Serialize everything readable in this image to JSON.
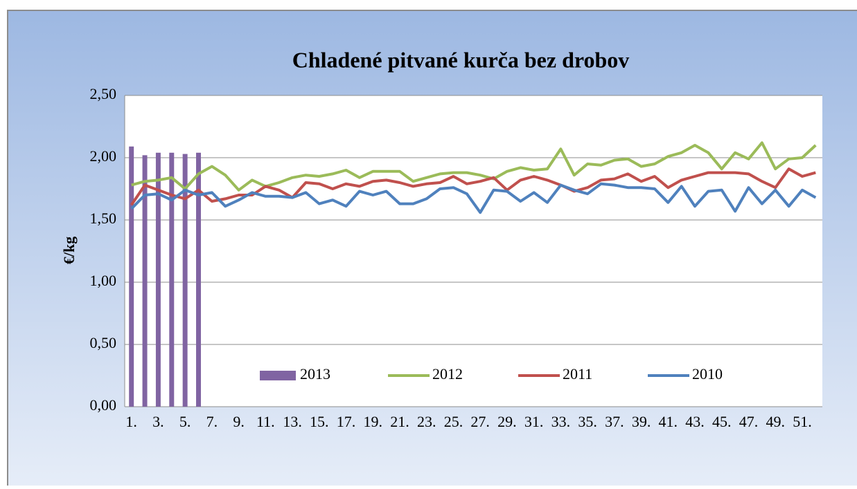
{
  "chart_data": {
    "type": "bar",
    "title": "Chladené pitvané kurča bez drobov",
    "y_label": "€/kg",
    "categories": [
      "1.",
      null,
      "3.",
      null,
      "5.",
      null,
      "7.",
      null,
      "9.",
      null,
      "11.",
      null,
      "13.",
      null,
      "15.",
      null,
      "17.",
      null,
      "19.",
      null,
      "21.",
      null,
      "23.",
      null,
      "25.",
      null,
      "27.",
      null,
      "29.",
      null,
      "31.",
      null,
      "33.",
      null,
      "35.",
      null,
      "37.",
      null,
      "39.",
      null,
      "41.",
      null,
      "43.",
      null,
      "45.",
      null,
      "47.",
      null,
      "49.",
      null,
      "51.",
      null
    ],
    "series": [
      {
        "name": "2013",
        "type": "bar",
        "color": "#8064a2",
        "values": [
          2.09,
          2.02,
          2.04,
          2.04,
          2.03,
          2.04,
          null,
          null,
          null,
          null,
          null,
          null,
          null,
          null,
          null,
          null,
          null,
          null,
          null,
          null,
          null,
          null,
          null,
          null,
          null,
          null,
          null,
          null,
          null,
          null,
          null,
          null,
          null,
          null,
          null,
          null,
          null,
          null,
          null,
          null,
          null,
          null,
          null,
          null,
          null,
          null,
          null,
          null,
          null,
          null,
          null,
          null
        ]
      },
      {
        "name": "2012",
        "type": "line",
        "color": "#9bbb59",
        "values": [
          1.78,
          1.81,
          1.82,
          1.84,
          1.75,
          1.87,
          1.93,
          1.86,
          1.74,
          1.82,
          1.77,
          1.8,
          1.84,
          1.86,
          1.85,
          1.87,
          1.9,
          1.84,
          1.89,
          1.89,
          1.89,
          1.81,
          1.84,
          1.87,
          1.88,
          1.88,
          1.86,
          1.83,
          1.89,
          1.92,
          1.9,
          1.91,
          2.07,
          1.86,
          1.95,
          1.94,
          1.98,
          1.99,
          1.93,
          1.95,
          2.01,
          2.04,
          2.1,
          2.04,
          1.91,
          2.04,
          1.99,
          2.12,
          1.91,
          1.99,
          2.0,
          2.1
        ]
      },
      {
        "name": "2011",
        "type": "line",
        "color": "#c0504d",
        "values": [
          1.62,
          1.78,
          1.74,
          1.7,
          1.67,
          1.74,
          1.65,
          1.67,
          1.7,
          1.7,
          1.77,
          1.74,
          1.68,
          1.8,
          1.79,
          1.75,
          1.79,
          1.77,
          1.81,
          1.82,
          1.8,
          1.77,
          1.79,
          1.8,
          1.85,
          1.79,
          1.81,
          1.84,
          1.74,
          1.82,
          1.85,
          1.82,
          1.78,
          1.73,
          1.76,
          1.82,
          1.83,
          1.87,
          1.81,
          1.85,
          1.76,
          1.82,
          1.85,
          1.88,
          1.88,
          1.88,
          1.87,
          1.81,
          1.76,
          1.91,
          1.85,
          1.88
        ]
      },
      {
        "name": "2010",
        "type": "line",
        "color": "#4f81bd",
        "values": [
          1.59,
          1.7,
          1.71,
          1.66,
          1.74,
          1.7,
          1.72,
          1.61,
          1.66,
          1.72,
          1.69,
          1.69,
          1.68,
          1.72,
          1.63,
          1.66,
          1.61,
          1.73,
          1.7,
          1.73,
          1.63,
          1.63,
          1.67,
          1.75,
          1.76,
          1.71,
          1.56,
          1.74,
          1.73,
          1.65,
          1.72,
          1.64,
          1.78,
          1.74,
          1.71,
          1.79,
          1.78,
          1.76,
          1.76,
          1.75,
          1.64,
          1.77,
          1.61,
          1.73,
          1.74,
          1.57,
          1.76,
          1.63,
          1.74,
          1.61,
          1.74,
          1.68
        ]
      }
    ],
    "ylim": [
      0,
      2.5
    ],
    "yticks": [
      {
        "value": 0,
        "label": "0,00"
      },
      {
        "value": 0.5,
        "label": "0,50"
      },
      {
        "value": 1,
        "label": "1,00"
      },
      {
        "value": 1.5,
        "label": "1,50"
      },
      {
        "value": 2,
        "label": "2,00"
      },
      {
        "value": 2.5,
        "label": "2,50"
      }
    ],
    "grid": true,
    "legend": "bottom"
  }
}
